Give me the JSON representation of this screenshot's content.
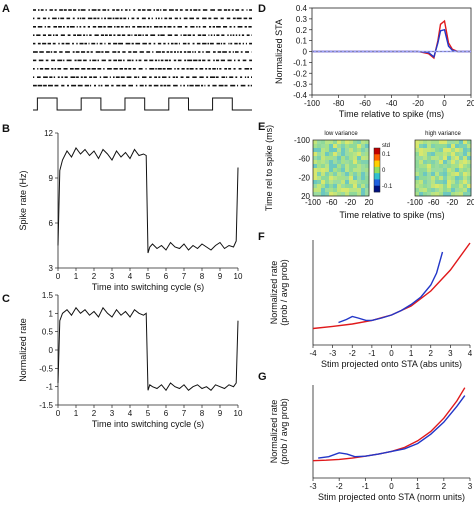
{
  "panels": {
    "A": {
      "label": "A"
    },
    "B": {
      "label": "B"
    },
    "C": {
      "label": "C"
    },
    "D": {
      "label": "D"
    },
    "E": {
      "label": "E"
    },
    "F": {
      "label": "F"
    },
    "G": {
      "label": "G"
    }
  },
  "colors": {
    "red": "#e0191b",
    "blue": "#2236c8",
    "gray": "#9aa0ff",
    "black": "#111111"
  },
  "chart_data": [
    {
      "id": "A",
      "type": "scatter",
      "title": "",
      "raster_rows": 10,
      "stimulus_periods": 5,
      "note_shape": "square wave switching between low and high variance"
    },
    {
      "id": "B",
      "type": "line",
      "xlabel": "Time into switching cycle (s)",
      "ylabel": "Spike rate (Hz)",
      "xlim": [
        0,
        10
      ],
      "ylim": [
        3,
        12
      ],
      "xticks": [
        "0",
        "1",
        "2",
        "3",
        "4",
        "5",
        "6",
        "7",
        "8",
        "9",
        "10"
      ],
      "yticks": [
        "3",
        "6",
        "9",
        "12"
      ],
      "series": [
        {
          "x": [
            0,
            0.1,
            0.25,
            0.5,
            0.75,
            1,
            1.25,
            1.5,
            1.75,
            2,
            2.25,
            2.5,
            2.75,
            3,
            3.25,
            3.5,
            3.75,
            4,
            4.25,
            4.5,
            4.75,
            4.9,
            5.0,
            5.1,
            5.25,
            5.5,
            5.75,
            6,
            6.25,
            6.5,
            6.75,
            7,
            7.25,
            7.5,
            7.75,
            8,
            8.25,
            8.5,
            8.75,
            9,
            9.25,
            9.5,
            9.75,
            9.9,
            10
          ],
          "y": [
            4.5,
            9.5,
            10.2,
            10.8,
            10.4,
            11.0,
            10.6,
            10.9,
            10.5,
            10.8,
            10.3,
            10.9,
            10.6,
            10.2,
            10.8,
            10.4,
            10.7,
            10.3,
            10.9,
            10.5,
            10.6,
            10.5,
            4.0,
            4.4,
            4.6,
            4.3,
            4.5,
            4.2,
            4.7,
            4.4,
            4.3,
            4.6,
            4.2,
            4.5,
            4.3,
            4.6,
            4.4,
            4.2,
            4.5,
            4.7,
            4.3,
            4.5,
            4.4,
            4.8,
            9.7
          ]
        }
      ]
    },
    {
      "id": "C",
      "type": "line",
      "xlabel": "Time into switching cycle (s)",
      "ylabel": "Normalized rate",
      "xlim": [
        0,
        10
      ],
      "ylim": [
        -1.5,
        1.5
      ],
      "xticks": [
        "0",
        "1",
        "2",
        "3",
        "4",
        "5",
        "6",
        "7",
        "8",
        "9",
        "10"
      ],
      "yticks": [
        "-1.5",
        "-1",
        "-0.5",
        "0",
        "0.5",
        "1",
        "1.5"
      ],
      "series": [
        {
          "x": [
            0,
            0.1,
            0.25,
            0.5,
            0.75,
            1,
            1.25,
            1.5,
            1.75,
            2,
            2.25,
            2.5,
            2.75,
            3,
            3.25,
            3.5,
            3.75,
            4,
            4.25,
            4.5,
            4.75,
            4.9,
            5.0,
            5.1,
            5.25,
            5.5,
            5.75,
            6,
            6.25,
            6.5,
            6.75,
            7,
            7.25,
            7.5,
            7.75,
            8,
            8.25,
            8.5,
            8.75,
            9,
            9.25,
            9.5,
            9.75,
            9.9,
            10
          ],
          "y": [
            -0.9,
            0.8,
            1.0,
            1.1,
            0.95,
            1.15,
            1.0,
            1.1,
            0.95,
            1.05,
            0.9,
            1.15,
            1.0,
            0.9,
            1.1,
            0.95,
            1.05,
            0.9,
            1.1,
            1.0,
            0.95,
            1.0,
            -1.1,
            -0.95,
            -1.0,
            -1.05,
            -0.95,
            -1.1,
            -0.9,
            -1.0,
            -1.05,
            -0.95,
            -1.1,
            -1.0,
            -0.95,
            -1.05,
            -1.0,
            -1.1,
            -0.95,
            -1.0,
            -1.05,
            -0.95,
            -1.0,
            -0.9,
            0.8
          ]
        }
      ]
    },
    {
      "id": "D",
      "type": "line",
      "xlabel": "Time relative to spike (ms)",
      "ylabel": "Normalized STA",
      "xlim": [
        -100,
        20
      ],
      "ylim": [
        -0.4,
        0.4
      ],
      "xticks": [
        "-100",
        "-80",
        "-60",
        "-40",
        "-20",
        "0",
        "20"
      ],
      "yticks": [
        "-0.4",
        "-0.3",
        "-0.2",
        "-0.1",
        "0",
        "0.1",
        "0.2",
        "0.3",
        "0.4"
      ],
      "series": [
        {
          "color": "red",
          "x": [
            -100,
            -80,
            -60,
            -40,
            -20,
            -12,
            -8,
            -5,
            -3,
            0,
            3,
            6,
            10,
            20
          ],
          "y": [
            0,
            0,
            0,
            0,
            0,
            -0.02,
            -0.06,
            0.1,
            0.25,
            0.28,
            0.08,
            0.02,
            0,
            0
          ]
        },
        {
          "color": "blue",
          "x": [
            -100,
            -80,
            -60,
            -40,
            -20,
            -12,
            -8,
            -5,
            -3,
            0,
            3,
            6,
            10,
            20
          ],
          "y": [
            0,
            0,
            0,
            0,
            0,
            -0.01,
            -0.05,
            0.08,
            0.19,
            0.2,
            0.05,
            0.01,
            0,
            0
          ]
        },
        {
          "color": "gray",
          "x": [
            -100,
            20
          ],
          "y": [
            0,
            0
          ]
        }
      ]
    },
    {
      "id": "E",
      "type": "heatmap",
      "ylabel": "Time rel to spike (ms)",
      "xlabel": "Time relative to spike (ms)",
      "subtitles": [
        "low variance",
        "high variance"
      ],
      "xticks": [
        "-100",
        "-60",
        "-20",
        "20"
      ],
      "xticks_right": [
        "-100",
        "-60",
        "-20",
        "20"
      ],
      "yticks": [
        "-100",
        "-60",
        "-20",
        "20"
      ],
      "colorbar_label": "std",
      "colorbar_ticks": [
        "0.1",
        "0",
        "-0.1"
      ]
    },
    {
      "id": "F",
      "type": "line",
      "xlabel": "Stim projected onto STA (abs units)",
      "ylabel": "Normalized rate\n(prob / avg prob)",
      "xlim": [
        -4,
        4
      ],
      "ylim": [
        0,
        3.5
      ],
      "xticks": [
        "-4",
        "-3",
        "-2",
        "-1",
        "0",
        "1",
        "2",
        "3",
        "4"
      ],
      "series": [
        {
          "color": "red",
          "x": [
            -4,
            -3,
            -2,
            -1,
            0,
            1,
            2,
            3,
            4
          ],
          "y": [
            0.55,
            0.62,
            0.7,
            0.82,
            1.0,
            1.3,
            1.8,
            2.5,
            3.4
          ]
        },
        {
          "color": "blue",
          "x": [
            -2.7,
            -2.3,
            -2.0,
            -1.7,
            -1.3,
            -1.0,
            -0.5,
            0,
            0.5,
            1,
            1.5,
            2,
            2.3,
            2.6
          ],
          "y": [
            0.75,
            0.85,
            0.95,
            0.9,
            0.82,
            0.82,
            0.9,
            1.0,
            1.15,
            1.35,
            1.6,
            2.0,
            2.4,
            3.1
          ]
        }
      ]
    },
    {
      "id": "G",
      "type": "line",
      "xlabel": "Stim projected onto STA (norm units)",
      "ylabel": "Normalized rate\n(prob / avg prob)",
      "xlim": [
        -3,
        3
      ],
      "ylim": [
        0,
        3.5
      ],
      "xticks": [
        "-3",
        "-2",
        "-1",
        "0",
        "1",
        "2",
        "3"
      ],
      "series": [
        {
          "color": "red",
          "x": [
            -3,
            -2.5,
            -2,
            -1.5,
            -1,
            -0.5,
            0,
            0.5,
            1,
            1.5,
            2,
            2.5,
            2.8
          ],
          "y": [
            0.65,
            0.67,
            0.7,
            0.75,
            0.82,
            0.9,
            1.0,
            1.15,
            1.4,
            1.75,
            2.25,
            2.9,
            3.4
          ]
        },
        {
          "color": "blue",
          "x": [
            -2.8,
            -2.4,
            -2,
            -1.7,
            -1.4,
            -1,
            -0.5,
            0,
            0.5,
            1,
            1.5,
            2,
            2.5,
            2.8
          ],
          "y": [
            0.75,
            0.8,
            0.95,
            0.9,
            0.8,
            0.82,
            0.9,
            1.0,
            1.1,
            1.3,
            1.65,
            2.1,
            2.7,
            3.1
          ]
        }
      ]
    }
  ]
}
